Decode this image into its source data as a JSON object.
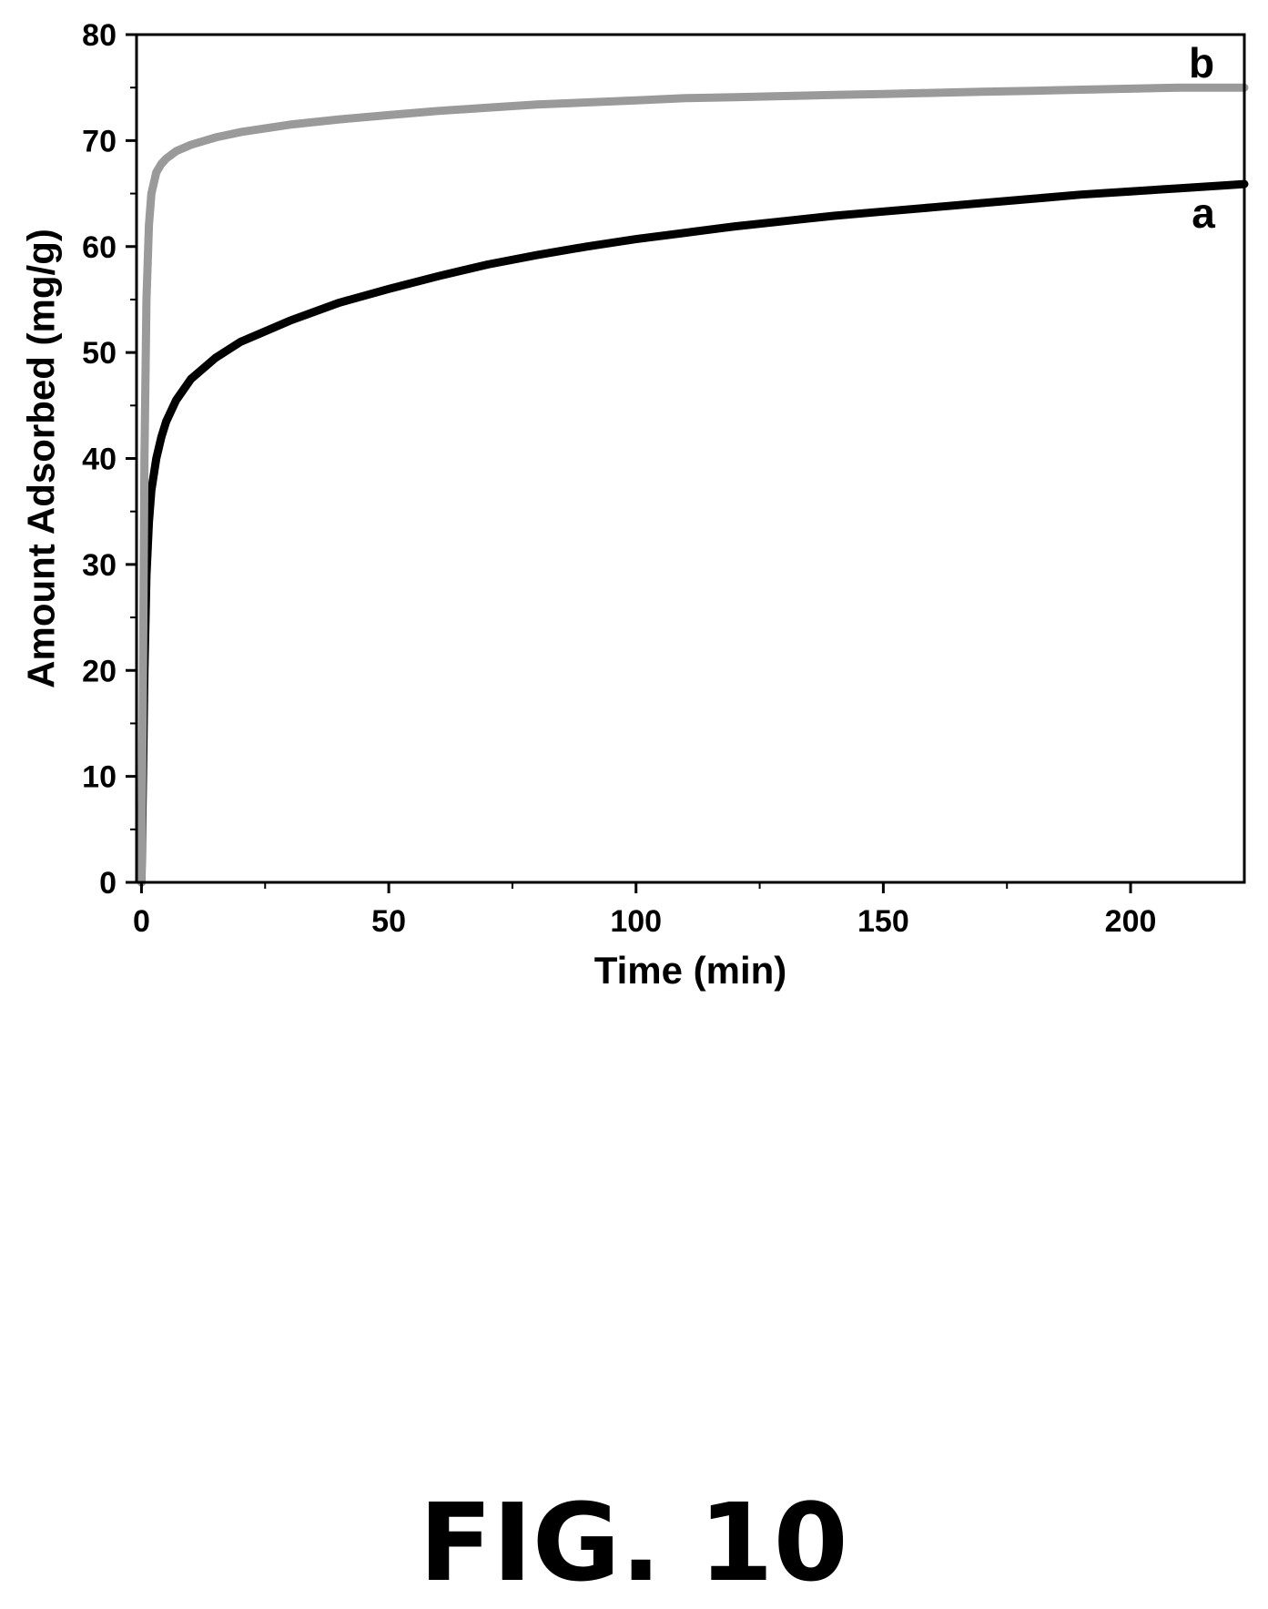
{
  "figure": {
    "caption": "FIG. 10"
  },
  "chart_data": {
    "type": "line",
    "title": "",
    "xlabel": "Time (min)",
    "ylabel": "Amount Adsorbed (mg/g)",
    "xlim": [
      -1,
      223
    ],
    "ylim": [
      0,
      80
    ],
    "x_ticks": [
      0,
      50,
      100,
      150,
      200
    ],
    "y_ticks": [
      0,
      10,
      20,
      30,
      40,
      50,
      60,
      70,
      80
    ],
    "grid": false,
    "legend": "none",
    "series": [
      {
        "name": "a",
        "color": "#000000",
        "x": [
          0,
          0.3,
          0.6,
          1,
          1.5,
          2,
          3,
          4,
          5,
          7,
          10,
          15,
          20,
          30,
          40,
          50,
          60,
          70,
          80,
          90,
          100,
          110,
          120,
          130,
          140,
          150,
          160,
          170,
          180,
          190,
          200,
          210,
          220,
          223
        ],
        "y": [
          0,
          10,
          20,
          29,
          34,
          37,
          40,
          42,
          43.5,
          45.5,
          47.5,
          49.5,
          51,
          53,
          54.7,
          56,
          57.2,
          58.3,
          59.2,
          60,
          60.7,
          61.3,
          61.9,
          62.4,
          62.9,
          63.3,
          63.7,
          64.1,
          64.5,
          64.9,
          65.2,
          65.5,
          65.8,
          65.9
        ]
      },
      {
        "name": "b",
        "color": "#9a9a9a",
        "x": [
          0,
          0.3,
          0.6,
          1,
          1.5,
          2,
          3,
          4,
          5,
          7,
          10,
          15,
          20,
          30,
          40,
          50,
          60,
          70,
          80,
          90,
          100,
          110,
          120,
          130,
          140,
          150,
          160,
          170,
          180,
          190,
          200,
          210,
          220,
          223
        ],
        "y": [
          0,
          20,
          40,
          55,
          62,
          65,
          67,
          67.8,
          68.3,
          69,
          69.6,
          70.3,
          70.8,
          71.5,
          72,
          72.4,
          72.8,
          73.1,
          73.4,
          73.6,
          73.8,
          74,
          74.1,
          74.2,
          74.3,
          74.4,
          74.5,
          74.6,
          74.7,
          74.8,
          74.9,
          75,
          75,
          75
        ]
      }
    ]
  }
}
